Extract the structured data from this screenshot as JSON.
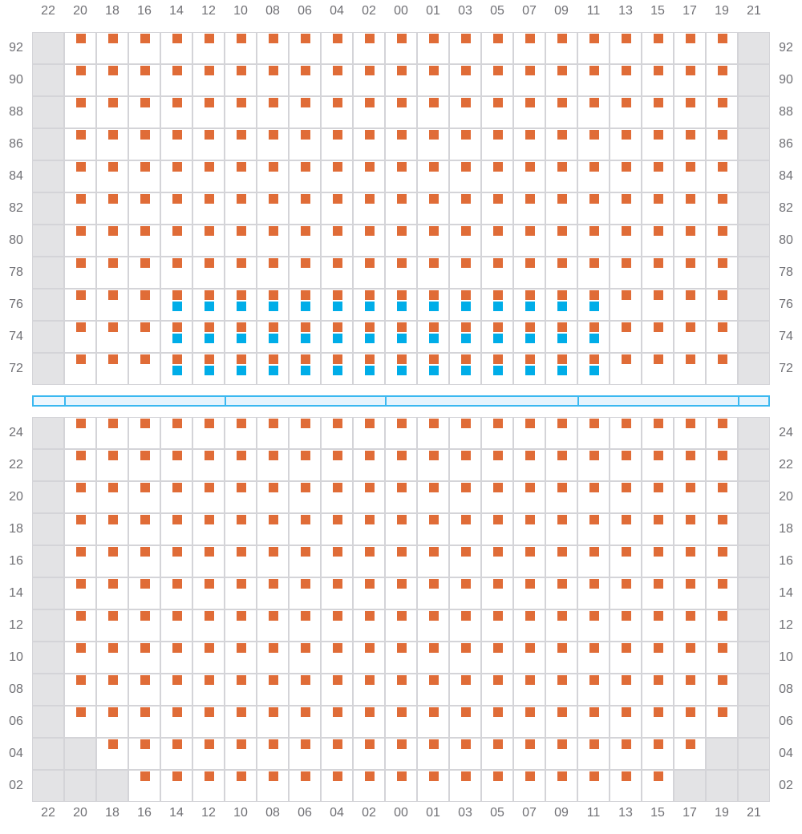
{
  "columns": [
    "22",
    "20",
    "18",
    "16",
    "14",
    "12",
    "10",
    "08",
    "06",
    "04",
    "02",
    "00",
    "01",
    "03",
    "05",
    "07",
    "09",
    "11",
    "13",
    "15",
    "17",
    "19",
    "21"
  ],
  "top_block": {
    "rows": [
      "92",
      "90",
      "88",
      "86",
      "84",
      "82",
      "80",
      "78",
      "76",
      "74",
      "72"
    ]
  },
  "bottom_block": {
    "rows": [
      "24",
      "22",
      "20",
      "18",
      "16",
      "14",
      "12",
      "10",
      "08",
      "06",
      "04",
      "02"
    ]
  },
  "unavailable_columns": [
    "22",
    "21"
  ],
  "unavailable_cells": {
    "04": [
      "20",
      "19"
    ],
    "02": [
      "20",
      "18",
      "17",
      "19"
    ]
  },
  "secondary_marker_cells": {
    "rows": [
      "76",
      "74",
      "72"
    ],
    "columns": [
      "14",
      "12",
      "10",
      "08",
      "06",
      "04",
      "02",
      "00",
      "01",
      "03",
      "05",
      "07",
      "09",
      "11"
    ]
  },
  "colors": {
    "primary_marker": "#e06c37",
    "secondary_marker": "#00ade8",
    "grid": "#d4d4d8",
    "unavailable": "#e3e3e5",
    "divider": "#3bb8f0"
  }
}
